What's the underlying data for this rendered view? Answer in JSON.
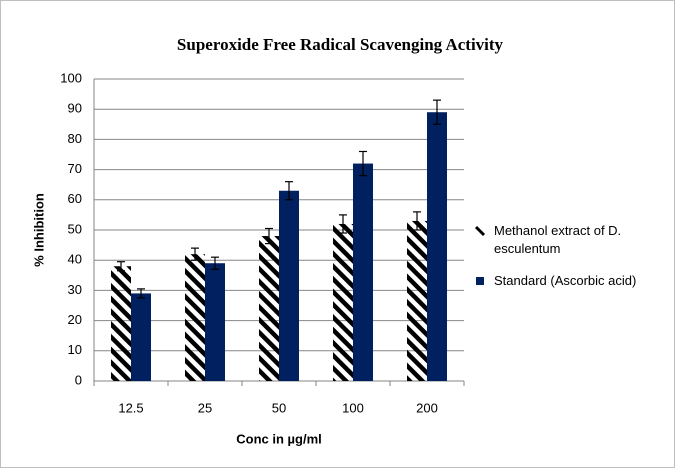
{
  "chart_data": {
    "type": "bar",
    "title": "Superoxide Free Radical Scavenging Activity",
    "xlabel": "Conc in µg/ml",
    "ylabel": "% Inhibition",
    "categories": [
      "12.5",
      "25",
      "50",
      "100",
      "200"
    ],
    "series": [
      {
        "name": "Methanol extract of D. esculentum",
        "color": "#000000",
        "pattern": "diagonal",
        "values": [
          38,
          42,
          48,
          52,
          53
        ],
        "errors": [
          1.5,
          2,
          2.5,
          3,
          3
        ]
      },
      {
        "name": "Standard (Ascorbic acid)",
        "color": "#002060",
        "values": [
          29,
          39,
          63,
          72,
          89
        ],
        "errors": [
          1.5,
          2,
          3,
          4,
          4
        ]
      }
    ],
    "ylim": [
      0,
      100
    ],
    "yticks": [
      0,
      10,
      20,
      30,
      40,
      50,
      60,
      70,
      80,
      90,
      100
    ],
    "grid": true,
    "legend": "right"
  }
}
